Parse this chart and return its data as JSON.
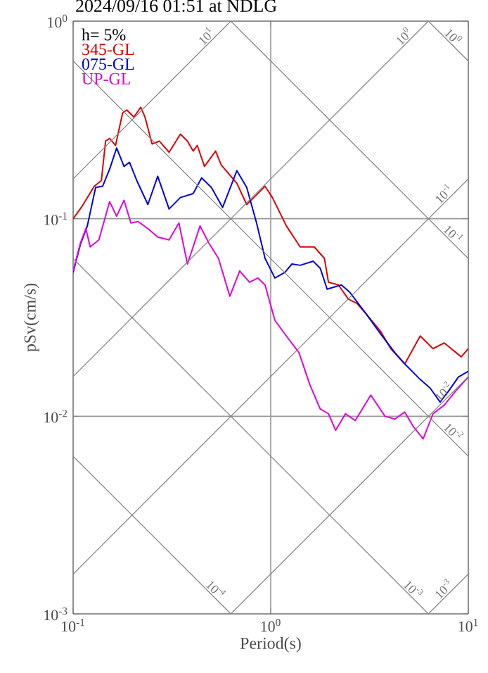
{
  "chart_data": {
    "type": "line",
    "title": "2024/09/16 01:51 at NDLG",
    "xlabel": "Period(s)",
    "ylabel": "pSv(cm/s)",
    "legend_title": "h= 5%",
    "legend": "top left",
    "log": "xy",
    "grid": true,
    "xlim": [
      0.1,
      10
    ],
    "ylim": [
      0.001,
      1
    ],
    "xticks": [
      {
        "value": 0.1,
        "label": "10$^{-1}$"
      },
      {
        "value": 1,
        "label": "10$^{0}$"
      },
      {
        "value": 10,
        "label": "10$^{1}$"
      }
    ],
    "yticks": [
      {
        "value": 0.001,
        "label": "10$^{-3}$"
      },
      {
        "value": 0.01,
        "label": "10$^{-2}$"
      },
      {
        "value": 0.1,
        "label": "10$^{-1}$"
      },
      {
        "value": 1,
        "label": "10$^{0}$"
      }
    ],
    "series": [
      {
        "name": "345-GL",
        "color": "#dd0000",
        "x": [
          0.1,
          0.11,
          0.128,
          0.139,
          0.146,
          0.153,
          0.164,
          0.178,
          0.187,
          0.203,
          0.22,
          0.231,
          0.251,
          0.273,
          0.306,
          0.349,
          0.379,
          0.405,
          0.425,
          0.462,
          0.526,
          0.562,
          0.674,
          0.756,
          0.821,
          0.936,
          1.02,
          1.2,
          1.41,
          1.66,
          1.87,
          1.96,
          2.2,
          2.47,
          2.73,
          3.06,
          3.61,
          4.05,
          4.77,
          5.71,
          6.63,
          7.56,
          9.21,
          10
        ],
        "values": [
          0.1,
          0.114,
          0.146,
          0.156,
          0.247,
          0.255,
          0.235,
          0.343,
          0.355,
          0.327,
          0.367,
          0.327,
          0.239,
          0.247,
          0.217,
          0.268,
          0.247,
          0.22,
          0.235,
          0.184,
          0.22,
          0.187,
          0.151,
          0.118,
          0.128,
          0.146,
          0.128,
          0.092,
          0.072,
          0.072,
          0.063,
          0.0477,
          0.0462,
          0.0392,
          0.0373,
          0.0327,
          0.0268,
          0.022,
          0.0184,
          0.0255,
          0.022,
          0.0235,
          0.02,
          0.022
        ]
      },
      {
        "name": "075-GL",
        "color": "#0000dd",
        "x": [
          0.1,
          0.109,
          0.118,
          0.13,
          0.141,
          0.153,
          0.166,
          0.181,
          0.193,
          0.21,
          0.239,
          0.268,
          0.306,
          0.349,
          0.405,
          0.447,
          0.501,
          0.571,
          0.674,
          0.756,
          0.848,
          0.936,
          1.05,
          1.18,
          1.28,
          1.41,
          1.64,
          1.78,
          1.93,
          2.28,
          2.51,
          3.06,
          3.61,
          4.25,
          4.77,
          5.62,
          6.41,
          7.2,
          7.94,
          8.91,
          10
        ],
        "values": [
          0.0535,
          0.0744,
          0.092,
          0.144,
          0.146,
          0.178,
          0.228,
          0.184,
          0.193,
          0.156,
          0.118,
          0.164,
          0.112,
          0.128,
          0.134,
          0.161,
          0.144,
          0.114,
          0.175,
          0.144,
          0.0952,
          0.063,
          0.0501,
          0.0535,
          0.059,
          0.0581,
          0.061,
          0.0562,
          0.044,
          0.0462,
          0.0425,
          0.0327,
          0.026,
          0.021,
          0.0184,
          0.0156,
          0.0139,
          0.0118,
          0.0134,
          0.0158,
          0.0169
        ]
      },
      {
        "name": "UP-GL",
        "color": "#dd00dd",
        "x": [
          0.1,
          0.109,
          0.116,
          0.122,
          0.135,
          0.153,
          0.166,
          0.181,
          0.196,
          0.213,
          0.239,
          0.268,
          0.306,
          0.343,
          0.379,
          0.439,
          0.485,
          0.544,
          0.621,
          0.697,
          0.781,
          0.862,
          0.936,
          1.05,
          1.2,
          1.39,
          1.58,
          1.78,
          1.96,
          2.13,
          2.39,
          2.68,
          3.21,
          3.79,
          4.25,
          4.77,
          5.26,
          5.91,
          6.63,
          7.56,
          8.62,
          10
        ],
        "values": [
          0.0544,
          0.0756,
          0.0891,
          0.072,
          0.0781,
          0.122,
          0.103,
          0.124,
          0.0952,
          0.0968,
          0.0891,
          0.0808,
          0.0781,
          0.0952,
          0.059,
          0.092,
          0.0756,
          0.063,
          0.0405,
          0.0544,
          0.0477,
          0.0501,
          0.0462,
          0.0306,
          0.0255,
          0.021,
          0.0144,
          0.0109,
          0.0103,
          0.0085,
          0.0103,
          0.00952,
          0.0128,
          0.01,
          0.00968,
          0.0105,
          0.0089,
          0.00769,
          0.0103,
          0.0114,
          0.0134,
          0.0158
        ]
      },
      {
        "name": "10$^{1}$",
        "color": "#808080",
        "x": [
          0.1,
          0.628
        ],
        "values": [
          0.159,
          1
        ]
      },
      {
        "name": "10$^{0}$",
        "color": "#808080",
        "x": [
          0.1,
          6.28
        ],
        "values": [
          0.0159,
          1
        ]
      },
      {
        "name": "10$^{-1}$",
        "color": "#808080",
        "x": [
          0.1,
          10
        ],
        "values": [
          0.00159,
          0.159
        ]
      },
      {
        "name": "10$^{-2}$",
        "color": "#808080",
        "x": [
          0.628,
          10
        ],
        "values": [
          0.001,
          0.0159
        ]
      },
      {
        "name": "10$^{-3}$",
        "color": "#808080",
        "x": [
          6.28,
          10
        ],
        "values": [
          0.001,
          0.00159
        ]
      },
      {
        "name": "10$^{0}$",
        "color": "#808080",
        "x": [
          6.28,
          10
        ],
        "values": [
          1,
          0.628
        ]
      },
      {
        "name": "10$^{-1}$",
        "color": "#808080",
        "x": [
          0.628,
          10
        ],
        "values": [
          1,
          0.0628
        ]
      },
      {
        "name": "10$^{-2}$",
        "color": "#808080",
        "x": [
          0.1,
          10
        ],
        "values": [
          0.628,
          0.00628
        ]
      },
      {
        "name": "10$^{-3}$",
        "color": "#808080",
        "x": [
          0.1,
          6.28
        ],
        "values": [
          0.0628,
          0.001
        ]
      },
      {
        "name": "10$^{-4}$",
        "color": "#808080",
        "x": [
          0.1,
          0.628
        ],
        "values": [
          0.00628,
          0.001
        ]
      }
    ]
  }
}
